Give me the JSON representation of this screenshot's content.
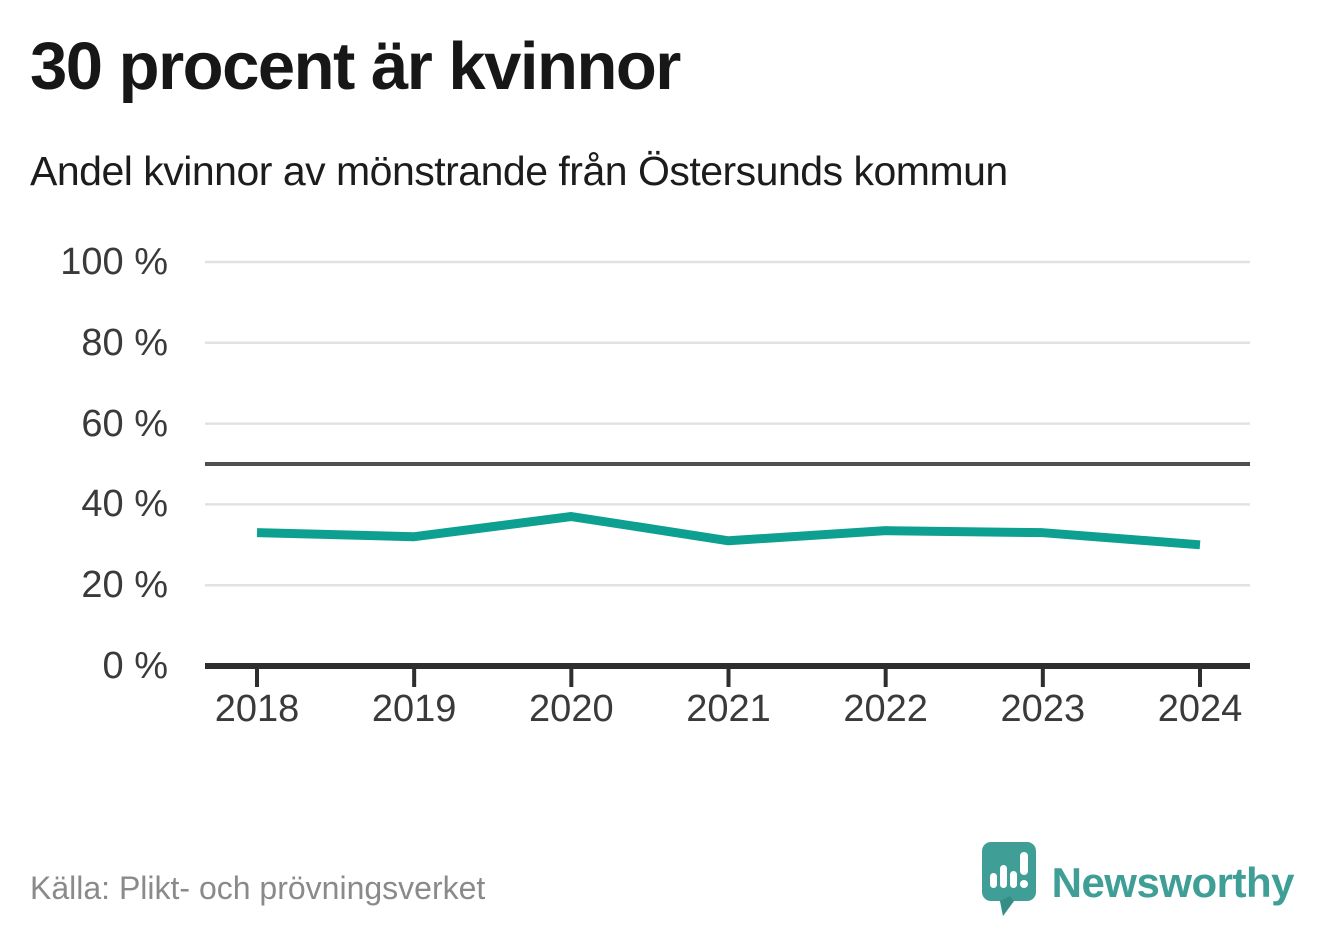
{
  "chart_data": {
    "type": "line",
    "title": "30 procent är kvinnor",
    "subtitle": "Andel kvinnor av mönstrande från Östersunds kommun",
    "x": [
      "2018",
      "2019",
      "2020",
      "2021",
      "2022",
      "2023",
      "2024"
    ],
    "series": [
      {
        "name": "Andel kvinnor av mönstrande",
        "values": [
          33,
          32,
          37,
          31,
          33.5,
          33,
          30
        ]
      }
    ],
    "xlabel": "",
    "ylabel": "",
    "ylim": [
      0,
      100
    ],
    "yticks": [
      0,
      20,
      40,
      60,
      80,
      100
    ],
    "ytick_labels": [
      "0 %",
      "20 %",
      "40 %",
      "60 %",
      "80 %",
      "100 %"
    ],
    "reference_line": 50,
    "grid": true,
    "legend": false,
    "source": "Källa: Plikt- och prövningsverket"
  },
  "branding": {
    "wordmark": "Newsworthy",
    "icon": "newsworthy-bubble-chart-icon"
  },
  "colors": {
    "line": "#0da091",
    "grid": "#e2e2e2",
    "reference_line": "#4f4f4f",
    "axis": "#2e2e2e",
    "tick_label": "#3a3a3a",
    "title_text": "#171717",
    "source_text": "#8a8a8a",
    "brand_teal": "#3f9e96",
    "brand_teal_dark": "#2f7f7a"
  }
}
